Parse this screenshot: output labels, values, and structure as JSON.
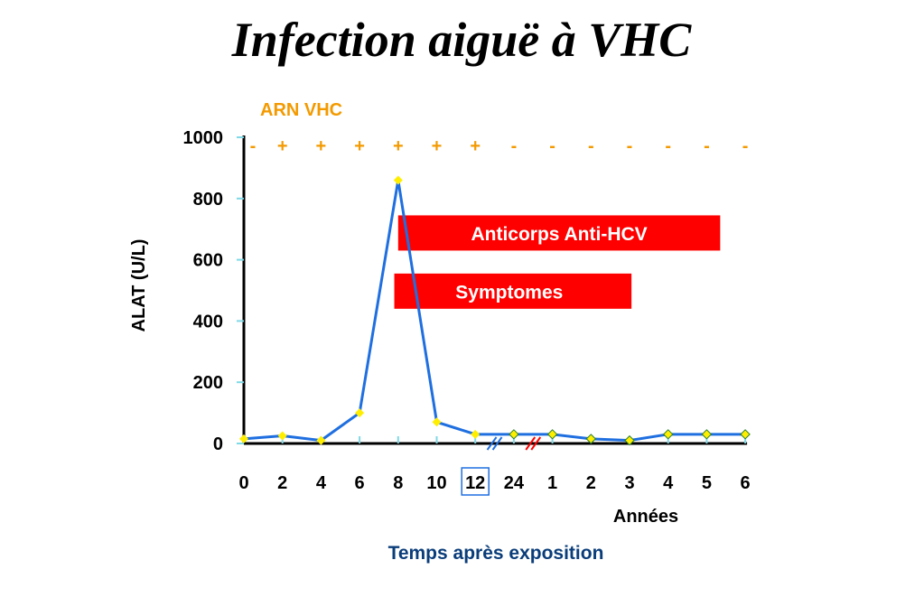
{
  "title": "Infection aiguë à VHC",
  "rna": {
    "label": "ARN VHC",
    "signs": [
      "-",
      "+",
      "+",
      "+",
      "+",
      "+",
      "+",
      "-",
      "-",
      "-",
      "-",
      "-",
      "-",
      "-"
    ],
    "color": "#f39a00"
  },
  "bars": [
    {
      "label": "Anticorps Anti-HCV",
      "color": "#ff0000"
    },
    {
      "label": "Symptomes",
      "color": "#ff0000"
    }
  ],
  "bottom_label": "Temps après exposition",
  "colors": {
    "line": "#1f6fe0",
    "marker": "#ffee00",
    "axis": "#000000",
    "bottom_label": "#0a3d7a"
  },
  "chart_data": {
    "type": "line",
    "title": "Infection aiguë à VHC",
    "ylabel": "ALAT (U/L)",
    "xlabel": "Temps après exposition",
    "xlabel_secondary": "Années",
    "ylim": [
      0,
      1000
    ],
    "yticks": [
      "0",
      "200",
      "400",
      "600",
      "800",
      "1000"
    ],
    "categories": [
      "0",
      "2",
      "4",
      "6",
      "8",
      "10",
      "12",
      "24",
      "1",
      "2",
      "3",
      "4",
      "5",
      "6"
    ],
    "highlighted_category": "12",
    "series": [
      {
        "values": [
          15,
          25,
          10,
          100,
          860,
          70,
          30,
          30,
          30,
          15,
          10,
          30,
          30,
          30
        ]
      }
    ],
    "annotations": [
      {
        "type": "bar",
        "label": "Anticorps Anti-HCV",
        "from_category_index": 4,
        "to_category_index": 12.35,
        "y_range": [
          630,
          745
        ]
      },
      {
        "type": "bar",
        "label": "Symptomes",
        "from_category_index": 3.9,
        "to_category_index": 10.05,
        "y_range": [
          440,
          555
        ]
      }
    ]
  }
}
